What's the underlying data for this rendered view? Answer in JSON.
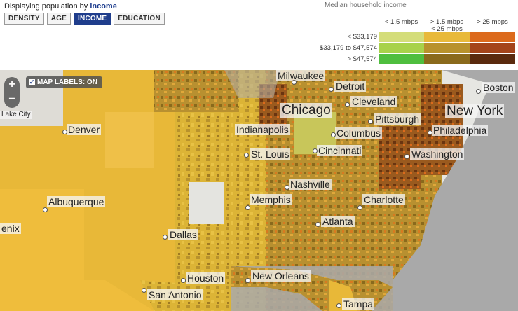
{
  "header": {
    "displaying_prefix": "Displaying population by",
    "displaying_value": "income",
    "buttons": [
      {
        "label": "DENSITY",
        "active": false
      },
      {
        "label": "AGE",
        "active": false
      },
      {
        "label": "INCOME",
        "active": true
      },
      {
        "label": "EDUCATION",
        "active": false
      }
    ]
  },
  "legend": {
    "title": "Median household income",
    "columns": [
      "< 1.5 mbps",
      "> 1.5 mbps\n< 25 mbps",
      "> 25 mbps"
    ],
    "rows": [
      "< $33,179",
      "$33,179 to $47,574",
      "> $47,574"
    ],
    "colors": [
      [
        "#d4dd7a",
        "#e8b93a",
        "#dc6a1c"
      ],
      [
        "#a8d24a",
        "#b8922c",
        "#a4441a"
      ],
      [
        "#4fbe3e",
        "#8a6a1c",
        "#5a2a0e"
      ]
    ]
  },
  "map_controls": {
    "zoom_in": "+",
    "zoom_out": "−",
    "labels_toggle": "MAP LABELS: ON"
  },
  "cities": [
    {
      "name": "Milwaukee",
      "size": "normal"
    },
    {
      "name": "Detroit",
      "size": "normal"
    },
    {
      "name": "Boston",
      "size": "normal"
    },
    {
      "name": "Lake City",
      "size": "small"
    },
    {
      "name": "Chicago",
      "size": "big"
    },
    {
      "name": "Cleveland",
      "size": "normal"
    },
    {
      "name": "New York",
      "size": "big"
    },
    {
      "name": "Denver",
      "size": "normal"
    },
    {
      "name": "Pittsburgh",
      "size": "normal"
    },
    {
      "name": "Indianapolis",
      "size": "normal"
    },
    {
      "name": "Columbus",
      "size": "normal"
    },
    {
      "name": "Philadelphia",
      "size": "normal"
    },
    {
      "name": "St. Louis",
      "size": "normal"
    },
    {
      "name": "Cincinnati",
      "size": "normal"
    },
    {
      "name": "Washington",
      "size": "normal"
    },
    {
      "name": "Nashville",
      "size": "normal"
    },
    {
      "name": "Memphis",
      "size": "normal"
    },
    {
      "name": "Charlotte",
      "size": "normal"
    },
    {
      "name": "Albuquerque",
      "size": "normal"
    },
    {
      "name": "enix",
      "size": "normal"
    },
    {
      "name": "Atlanta",
      "size": "normal"
    },
    {
      "name": "Dallas",
      "size": "normal"
    },
    {
      "name": "Houston",
      "size": "normal"
    },
    {
      "name": "New Orleans",
      "size": "normal"
    },
    {
      "name": "San Antonio",
      "size": "normal"
    },
    {
      "name": "Tampa",
      "size": "normal"
    }
  ]
}
